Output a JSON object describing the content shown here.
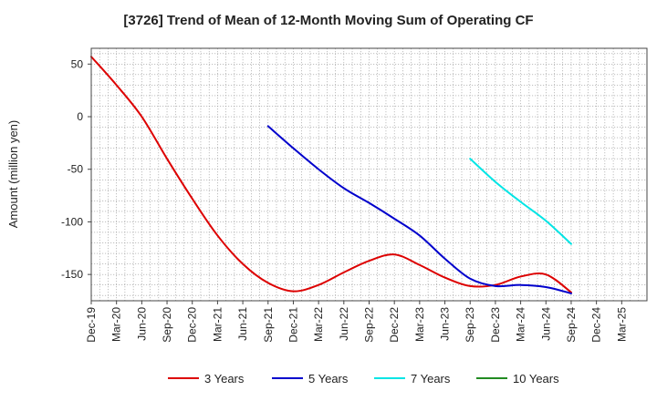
{
  "chart_data": {
    "type": "line",
    "title": "[3726]  Trend of Mean of 12-Month Moving Sum of Operating CF",
    "xlabel": "",
    "ylabel": "Amount (million yen)",
    "ylim": [
      -175,
      65
    ],
    "yticks": [
      50,
      0,
      -50,
      -100,
      -150
    ],
    "grid": true,
    "legend_position": "bottom",
    "x": [
      "Dec-19",
      "Mar-20",
      "Jun-20",
      "Sep-20",
      "Dec-20",
      "Mar-21",
      "Jun-21",
      "Sep-21",
      "Dec-21",
      "Mar-22",
      "Jun-22",
      "Sep-22",
      "Dec-22",
      "Mar-23",
      "Jun-23",
      "Sep-23",
      "Dec-23",
      "Mar-24",
      "Jun-24",
      "Sep-24",
      "Dec-24",
      "Mar-25"
    ],
    "series": [
      {
        "name": "3 Years",
        "color": "#dd0000",
        "values": [
          57,
          30,
          0,
          -40,
          -78,
          -113,
          -140,
          -158,
          -166,
          -160,
          -148,
          -137,
          -131,
          -141,
          -153,
          -161,
          -160,
          -152,
          -150,
          -167,
          null,
          null
        ]
      },
      {
        "name": "5 Years",
        "color": "#0000cc",
        "values": [
          null,
          null,
          null,
          null,
          null,
          null,
          null,
          -9,
          -30,
          -50,
          -68,
          -82,
          -97,
          -113,
          -135,
          -154,
          -161,
          -160,
          -162,
          -168,
          null,
          null
        ]
      },
      {
        "name": "7 Years",
        "color": "#00e5e5",
        "values": [
          null,
          null,
          null,
          null,
          null,
          null,
          null,
          null,
          null,
          null,
          null,
          null,
          null,
          null,
          null,
          -40,
          -62,
          -81,
          -99,
          -121,
          null,
          null
        ]
      },
      {
        "name": "10 Years",
        "color": "#228b22",
        "values": [
          null,
          null,
          null,
          null,
          null,
          null,
          null,
          null,
          null,
          null,
          null,
          null,
          null,
          null,
          null,
          null,
          null,
          null,
          null,
          null,
          null,
          null
        ]
      }
    ]
  }
}
